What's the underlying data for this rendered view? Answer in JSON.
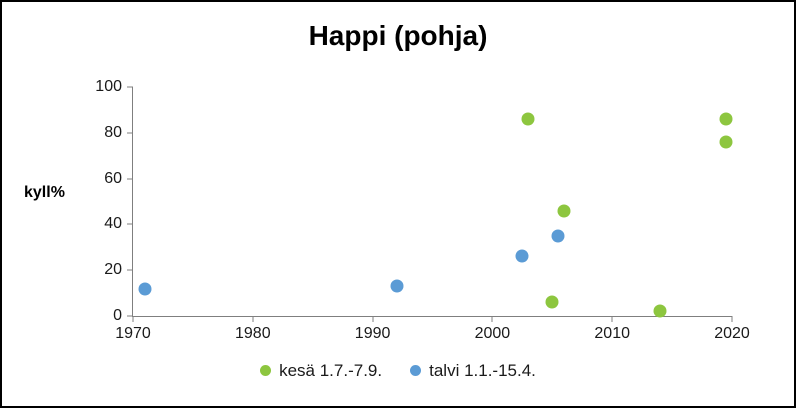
{
  "chart_data": {
    "type": "scatter",
    "title": "Happi (pohja)",
    "xlabel": "",
    "ylabel": "kyll%",
    "xlim": [
      1970,
      2020
    ],
    "ylim": [
      0,
      100
    ],
    "x_ticks": [
      1970,
      1980,
      1990,
      2000,
      2010,
      2020
    ],
    "y_ticks": [
      0,
      20,
      40,
      60,
      80,
      100
    ],
    "grid": false,
    "legend_position": "bottom",
    "series": [
      {
        "name": "kesä 1.7.-7.9.",
        "color": "#8dc63f",
        "points": [
          [
            2003,
            86
          ],
          [
            2005,
            6
          ],
          [
            2006,
            46
          ],
          [
            2014,
            2
          ],
          [
            2019.5,
            86
          ],
          [
            2019.5,
            76
          ]
        ]
      },
      {
        "name": "talvi 1.1.-15.4.",
        "color": "#5b9bd5",
        "points": [
          [
            1971,
            12
          ],
          [
            1992,
            13
          ],
          [
            2002.5,
            26
          ],
          [
            2005.5,
            35
          ]
        ]
      }
    ]
  }
}
